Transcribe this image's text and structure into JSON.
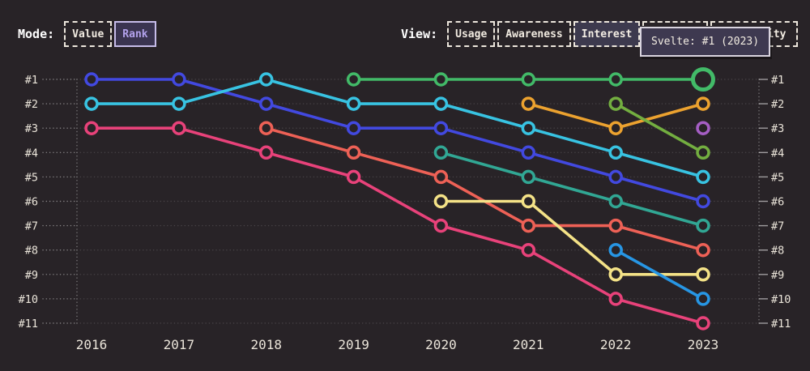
{
  "page": {
    "background": "#282327"
  },
  "mode_toggle": {
    "label": "Mode:",
    "options": [
      {
        "label": "Value",
        "selected": false
      },
      {
        "label": "Rank",
        "selected": true
      }
    ]
  },
  "view_toggle": {
    "label": "View:",
    "options": [
      {
        "label": "Usage",
        "selected": false
      },
      {
        "label": "Awareness",
        "selected": false
      },
      {
        "label": "Interest",
        "selected": true
      },
      {
        "label": "",
        "selected": false,
        "visibility": "fully hidden behind tooltip"
      },
      {
        "label": "Positivity",
        "selected": false,
        "visibility": "partially hidden behind tooltip, only 'ty' visible"
      }
    ]
  },
  "tooltip": {
    "text": "Svelte: #1 (2023)"
  },
  "chart_data": {
    "type": "line",
    "subtype": "bump-chart-rankings",
    "title": "",
    "x_labels": [
      "2016",
      "2017",
      "2018",
      "2019",
      "2020",
      "2021",
      "2022",
      "2023"
    ],
    "y_axis_labels": [
      "#1",
      "#2",
      "#3",
      "#4",
      "#5",
      "#6",
      "#7",
      "#8",
      "#9",
      "#10",
      "#11"
    ],
    "y_axis": "rank (1 = top, shown on both left and right sides)",
    "grid": "dotted horizontal line per rank, dotted vertical line at each plot edge",
    "legend_position": "none",
    "highlight": {
      "series": "Svelte",
      "x": "2023",
      "rank": 1
    },
    "series": [
      {
        "name": "series-indigo",
        "color": "#4249e0",
        "ranks": [
          1,
          1,
          2,
          3,
          3,
          4,
          5,
          6
        ]
      },
      {
        "name": "series-cyan",
        "color": "#38c3e2",
        "ranks": [
          2,
          2,
          1,
          2,
          2,
          3,
          4,
          5
        ]
      },
      {
        "name": "series-pink",
        "color": "#e8427a",
        "ranks": [
          3,
          3,
          4,
          5,
          7,
          8,
          10,
          11
        ]
      },
      {
        "name": "series-red",
        "color": "#ee6156",
        "ranks": [
          null,
          null,
          3,
          4,
          5,
          7,
          7,
          8
        ]
      },
      {
        "name": "series-teal",
        "color": "#31a794",
        "ranks": [
          null,
          null,
          null,
          null,
          4,
          5,
          6,
          7
        ]
      },
      {
        "name": "series-yellow",
        "color": "#f4e287",
        "ranks": [
          null,
          null,
          null,
          null,
          6,
          6,
          9,
          9
        ]
      },
      {
        "name": "series-orange",
        "color": "#eca22f",
        "ranks": [
          null,
          null,
          null,
          null,
          null,
          2,
          3,
          2
        ]
      },
      {
        "name": "series-lime",
        "color": "#73ae40",
        "ranks": [
          null,
          null,
          null,
          null,
          null,
          null,
          2,
          4
        ]
      },
      {
        "name": "series-sky",
        "color": "#2796e4",
        "ranks": [
          null,
          null,
          null,
          null,
          null,
          null,
          8,
          10
        ]
      },
      {
        "name": "Svelte",
        "color": "#42ba68",
        "ranks": [
          null,
          null,
          null,
          1,
          1,
          1,
          1,
          1
        ]
      },
      {
        "name": "series-purple",
        "color": "#a55ec4",
        "ranks": [
          null,
          null,
          null,
          null,
          null,
          null,
          null,
          3
        ]
      }
    ]
  }
}
